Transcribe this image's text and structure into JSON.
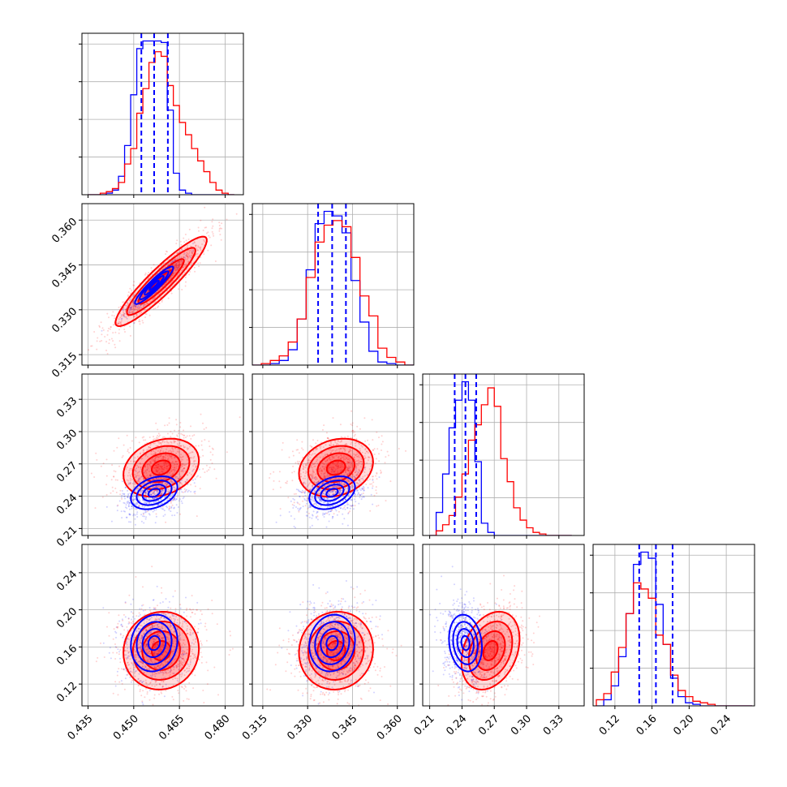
{
  "chart_data": {
    "type": "corner",
    "grid": true,
    "legend": "none",
    "colors": {
      "blue": "#0000ff",
      "red": "#ff0000"
    },
    "series": [
      {
        "name": "",
        "color": "#0000ff"
      },
      {
        "name": "",
        "color": "#ff0000"
      }
    ],
    "parameters": [
      {
        "range": [
          0.433,
          0.486
        ],
        "ticks": [
          0.435,
          0.45,
          0.465,
          0.48
        ],
        "tick_labels": [
          "0.435",
          "0.450",
          "0.465",
          "0.480"
        ],
        "quantiles_blue": [
          0.4525,
          0.4567,
          0.4612
        ]
      },
      {
        "range": [
          0.3115,
          0.3655
        ],
        "ticks": [
          0.315,
          0.33,
          0.345,
          0.36
        ],
        "tick_labels": [
          "0.315",
          "0.330",
          "0.345",
          "0.360"
        ],
        "quantiles_blue": [
          0.3335,
          0.3382,
          0.3428
        ]
      },
      {
        "range": [
          0.2035,
          0.3535
        ],
        "ticks": [
          0.21,
          0.24,
          0.27,
          0.3,
          0.33
        ],
        "tick_labels": [
          "0.21",
          "0.24",
          "0.27",
          "0.30",
          "0.33"
        ],
        "quantiles_blue": [
          0.2332,
          0.2432,
          0.2532
        ]
      },
      {
        "range": [
          0.0965,
          0.2705
        ],
        "ticks": [
          0.12,
          0.16,
          0.2,
          0.24
        ],
        "tick_labels": [
          "0.12",
          "0.16",
          "0.20",
          "0.24"
        ],
        "quantiles_blue": [
          0.1462,
          0.1642,
          0.1822
        ]
      }
    ],
    "histograms": [
      {
        "param": 0,
        "bin_edges": [
          0.435,
          0.437,
          0.439,
          0.441,
          0.443,
          0.445,
          0.447,
          0.449,
          0.451,
          0.453,
          0.455,
          0.457,
          0.459,
          0.461,
          0.463,
          0.465,
          0.467,
          0.469,
          0.471,
          0.473,
          0.475,
          0.477,
          0.479,
          0.481,
          0.483
        ],
        "counts_blue": [
          0,
          0,
          0,
          1,
          3,
          12,
          32,
          65,
          95,
          100,
          100,
          100,
          99,
          55,
          14,
          3,
          1,
          0,
          0,
          0,
          0,
          0,
          0,
          0
        ],
        "counts_red": [
          0,
          0,
          1,
          2,
          4,
          8,
          20,
          30,
          53,
          69,
          86,
          93,
          90,
          71,
          58,
          47,
          39,
          30,
          22,
          15,
          8,
          3,
          1,
          0
        ]
      },
      {
        "param": 1,
        "bin_edges": [
          0.3115,
          0.3145,
          0.3175,
          0.3205,
          0.3235,
          0.3265,
          0.3295,
          0.3325,
          0.3355,
          0.3385,
          0.3415,
          0.3445,
          0.3475,
          0.3505,
          0.3535,
          0.3565,
          0.3595,
          0.3625,
          0.3655
        ],
        "counts_blue": [
          0,
          0,
          1,
          3,
          10,
          30,
          62,
          92,
          100,
          97,
          86,
          55,
          28,
          9,
          2,
          1,
          0,
          0
        ],
        "counts_red": [
          0,
          1,
          3,
          6,
          15,
          30,
          57,
          80,
          91,
          94,
          90,
          70,
          45,
          32,
          11,
          5,
          2,
          0
        ]
      },
      {
        "param": 2,
        "bin_edges": [
          0.21,
          0.216,
          0.222,
          0.228,
          0.234,
          0.24,
          0.246,
          0.252,
          0.258,
          0.264,
          0.27,
          0.276,
          0.282,
          0.288,
          0.294,
          0.3,
          0.306,
          0.312,
          0.318,
          0.324,
          0.33,
          0.336,
          0.342
        ],
        "counts_blue": [
          0,
          15,
          40,
          70,
          88,
          100,
          88,
          48,
          8,
          2,
          0,
          0,
          0,
          0,
          0,
          0,
          0,
          0,
          0,
          0,
          0,
          0
        ],
        "counts_red": [
          0,
          3,
          7,
          13,
          25,
          40,
          62,
          72,
          85,
          96,
          84,
          50,
          35,
          18,
          10,
          5,
          2,
          1,
          0,
          0,
          0,
          0
        ]
      },
      {
        "param": 3,
        "bin_edges": [
          0.1,
          0.108,
          0.116,
          0.124,
          0.132,
          0.14,
          0.148,
          0.156,
          0.164,
          0.172,
          0.18,
          0.188,
          0.196,
          0.204,
          0.212,
          0.22,
          0.228,
          0.236,
          0.244,
          0.252,
          0.26,
          0.268
        ],
        "counts_blue": [
          0,
          4,
          13,
          32,
          60,
          92,
          100,
          96,
          66,
          40,
          18,
          6,
          2,
          1,
          0,
          0,
          0,
          0,
          0,
          0,
          0
        ],
        "counts_red": [
          4,
          8,
          22,
          38,
          60,
          80,
          76,
          70,
          46,
          40,
          20,
          10,
          6,
          3,
          2,
          1,
          0,
          0,
          0,
          0,
          0
        ]
      }
    ],
    "pairs": [
      {
        "x": 0,
        "y": 1,
        "blue_center": [
          0.4567,
          0.3382
        ],
        "blue_sd": [
          0.0037,
          0.0037
        ],
        "blue_rho": 0.93,
        "red_center": [
          0.459,
          0.3395
        ],
        "red_sd": [
          0.0075,
          0.0075
        ],
        "red_rho": 0.92
      },
      {
        "x": 0,
        "y": 2,
        "blue_center": [
          0.4567,
          0.2432
        ],
        "blue_sd": [
          0.0045,
          0.009
        ],
        "blue_rho": 0.35,
        "red_center": [
          0.459,
          0.2665
        ],
        "red_sd": [
          0.0062,
          0.0135
        ],
        "red_rho": 0.25
      },
      {
        "x": 1,
        "y": 2,
        "blue_center": [
          0.3382,
          0.2432
        ],
        "blue_sd": [
          0.0045,
          0.009
        ],
        "blue_rho": 0.35,
        "red_center": [
          0.3395,
          0.2665
        ],
        "red_sd": [
          0.0062,
          0.0135
        ],
        "red_rho": 0.2
      },
      {
        "x": 0,
        "y": 3,
        "blue_center": [
          0.4567,
          0.1642
        ],
        "blue_sd": [
          0.0045,
          0.018
        ],
        "blue_rho": 0.1,
        "red_center": [
          0.459,
          0.156
        ],
        "red_sd": [
          0.0062,
          0.021
        ],
        "red_rho": 0.05
      },
      {
        "x": 1,
        "y": 3,
        "blue_center": [
          0.3382,
          0.1642
        ],
        "blue_sd": [
          0.0045,
          0.018
        ],
        "blue_rho": 0.1,
        "red_center": [
          0.3395,
          0.156
        ],
        "red_sd": [
          0.0062,
          0.021
        ],
        "red_rho": 0.05
      },
      {
        "x": 2,
        "y": 3,
        "blue_center": [
          0.2432,
          0.1642
        ],
        "blue_sd": [
          0.009,
          0.018
        ],
        "blue_rho": -0.15,
        "red_center": [
          0.2665,
          0.156
        ],
        "red_sd": [
          0.0135,
          0.021
        ],
        "red_rho": 0.3
      }
    ]
  }
}
